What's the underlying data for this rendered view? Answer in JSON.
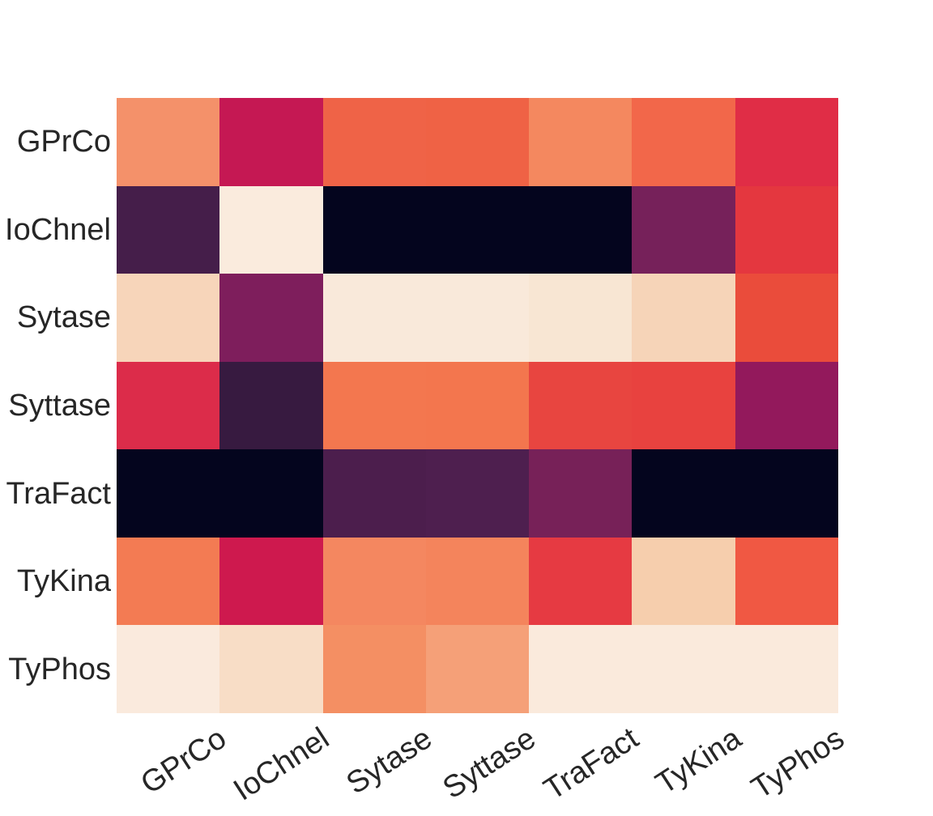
{
  "figure": {
    "background_color": "#ffffff"
  },
  "chart_data": {
    "type": "heatmap",
    "title": "",
    "xlabel": "",
    "ylabel": "",
    "legend": "none (no colorbar shown)",
    "colormap": "rocket",
    "colormap_note": "dark navy = low values, pale cream = high values",
    "tick_label_color": "#262626",
    "x_tick_rotation_deg": -33,
    "row_labels": [
      "GPrCo",
      "IoChnel",
      "Sytase",
      "Syttase",
      "TraFact",
      "TyKina",
      "TyPhos"
    ],
    "col_labels": [
      "GPrCo",
      "IoChnel",
      "Sytase",
      "Syttase",
      "TraFact",
      "TyKina",
      "TyPhos"
    ],
    "cell_colors": [
      [
        "#f4916a",
        "#c51853",
        "#ef6347",
        "#ef6245",
        "#f4885f",
        "#f2674a",
        "#e02d46"
      ],
      [
        "#451e4a",
        "#faebdd",
        "#04051e",
        "#04051e",
        "#04051e",
        "#76215a",
        "#e4373f"
      ],
      [
        "#f7d5ba",
        "#7e1e5c",
        "#f9e9da",
        "#f9e9da",
        "#f8e6d3",
        "#f6d4b8",
        "#ea4c3b"
      ],
      [
        "#dc2c4a",
        "#371a40",
        "#f3774f",
        "#f3764e",
        "#e84540",
        "#e8423f",
        "#93195c"
      ],
      [
        "#04051e",
        "#04051e",
        "#4c1e4d",
        "#4e1f4f",
        "#772158",
        "#04051e",
        "#04051e"
      ],
      [
        "#f37b53",
        "#ce194e",
        "#f48760",
        "#f4845c",
        "#e63a42",
        "#f6cead",
        "#f05843"
      ],
      [
        "#faeadd",
        "#f8ddc6",
        "#f48f63",
        "#f5a078",
        "#faeadc",
        "#faeadc",
        "#faeadc"
      ]
    ],
    "values_estimated_0_to_1": [
      [
        0.76,
        0.45,
        0.65,
        0.64,
        0.74,
        0.66,
        0.53
      ],
      [
        0.13,
        0.97,
        0.02,
        0.02,
        0.02,
        0.25,
        0.55
      ],
      [
        0.89,
        0.27,
        0.95,
        0.95,
        0.94,
        0.88,
        0.6
      ],
      [
        0.52,
        0.1,
        0.7,
        0.7,
        0.58,
        0.57,
        0.33
      ],
      [
        0.02,
        0.02,
        0.15,
        0.16,
        0.25,
        0.02,
        0.02
      ],
      [
        0.71,
        0.48,
        0.74,
        0.73,
        0.56,
        0.87,
        0.62
      ],
      [
        0.97,
        0.91,
        0.75,
        0.8,
        0.97,
        0.97,
        0.97
      ]
    ]
  }
}
